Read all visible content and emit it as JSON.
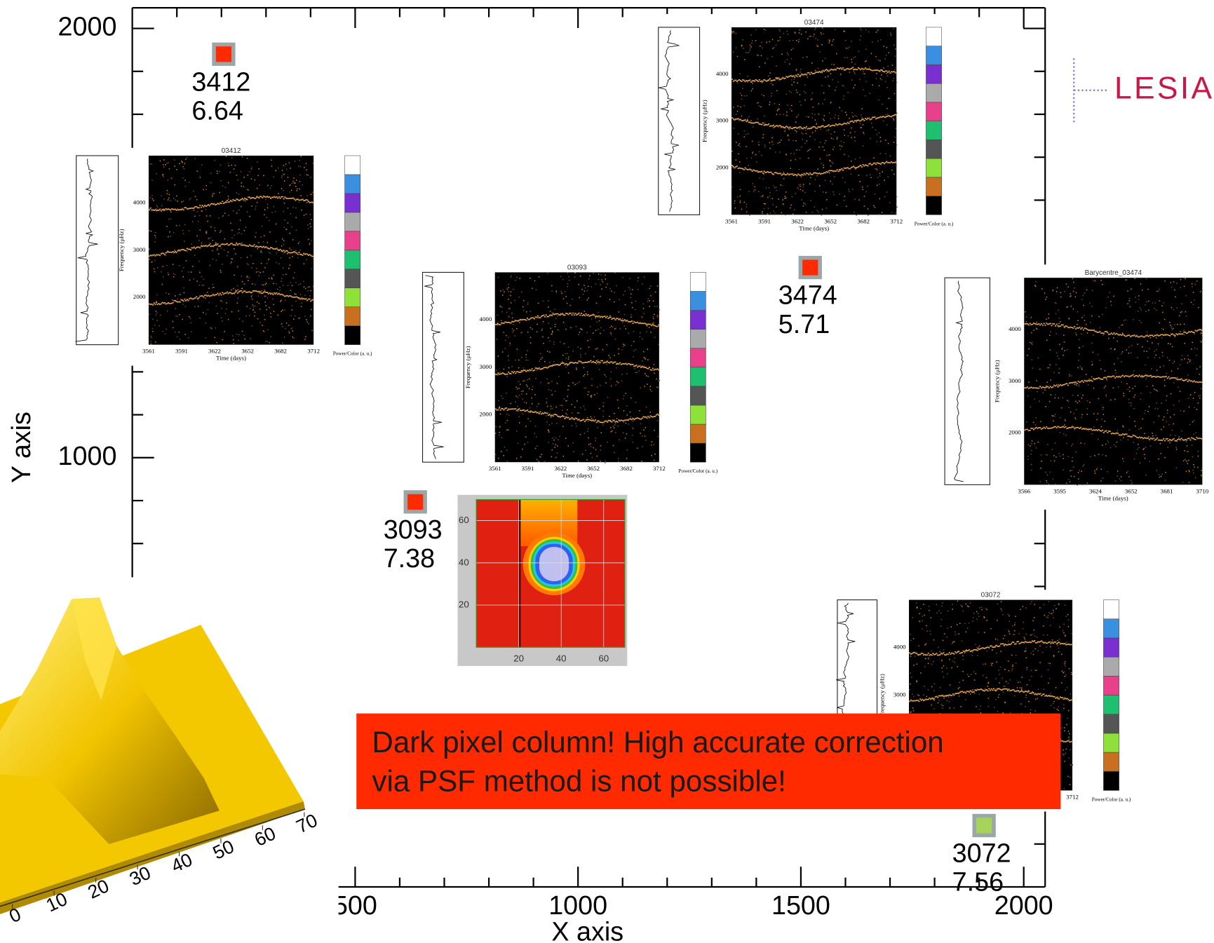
{
  "chart_data": {
    "type": "scatter",
    "x_label": "X axis",
    "y_label": "Y axis",
    "xlim": [
      0,
      2048
    ],
    "ylim": [
      0,
      2048
    ],
    "xticks": [
      500,
      1000,
      1500,
      2000
    ],
    "yticks": [
      1000,
      2000
    ],
    "x_minor_ticks": [
      100,
      200,
      300,
      400,
      600,
      700,
      800,
      900,
      1100,
      1200,
      1300,
      1400,
      1600,
      1700,
      1800,
      1900
    ],
    "y_minor_ticks": [
      100,
      200,
      300,
      400,
      600,
      700,
      800,
      900,
      1100,
      1200,
      1300,
      1400,
      1600,
      1700,
      1800,
      1900
    ],
    "points": [
      {
        "name": "3412",
        "x": 205,
        "y": 1940,
        "magnitude": 6.64,
        "color": "#ff2a00"
      },
      {
        "name": "3474",
        "x": 1521,
        "y": 1443,
        "magnitude": 5.71,
        "color": "#ff2a00"
      },
      {
        "name": "3093",
        "x": 635,
        "y": 897,
        "magnitude": 7.38,
        "color": "#ff2a00"
      },
      {
        "name": "3072",
        "x": 1911,
        "y": 143,
        "magnitude": 7.56,
        "color": "#a6d45a"
      }
    ]
  },
  "insets": [
    {
      "title": "03412",
      "xlabel": "Time (days)",
      "ylabel": "Frequency (μHz)",
      "xticks": [
        "3561",
        "3591",
        "3622",
        "3652",
        "3682",
        "3712"
      ],
      "yticks": [
        "4000",
        "3000",
        "2000"
      ],
      "colorbar_label": "Power/Color (a. u.)"
    },
    {
      "title": "03474",
      "xlabel": "Time (days)",
      "ylabel": "Frequency (μHz)",
      "xticks": [
        "3561",
        "3591",
        "3622",
        "3652",
        "3682",
        "3712"
      ],
      "yticks": [
        "4000",
        "3000",
        "2000"
      ],
      "colorbar_label": "Power/Color (a. u.)"
    },
    {
      "title": "03093",
      "xlabel": "Time (days)",
      "ylabel": "Frequency (μHz)",
      "xticks": [
        "3561",
        "3591",
        "3622",
        "3652",
        "3682",
        "3712"
      ],
      "yticks": [
        "4000",
        "3000",
        "2000"
      ],
      "colorbar_label": "Power/Color (a. u.)"
    },
    {
      "title": "Barycentre_03474",
      "xlabel": "Time (days)",
      "ylabel": "Frequency (μHz)",
      "xticks": [
        "3566",
        "3595",
        "3624",
        "3652",
        "3681",
        "3710"
      ],
      "yticks": [
        "4000",
        "3000",
        "2000"
      ]
    },
    {
      "title": "03072",
      "ylabel": "Frequency (μHz)",
      "xticks": [
        "3712"
      ],
      "yticks": [
        "4000",
        "3000"
      ],
      "colorbar_label": "Power/Color (a. u.)"
    }
  ],
  "psf_image": {
    "xlim": [
      0,
      70
    ],
    "ylim": [
      0,
      70
    ],
    "xticks": [
      20,
      40,
      60
    ],
    "yticks": [
      20,
      40,
      60
    ]
  },
  "surface_3d": {
    "xlim": [
      0,
      70
    ],
    "xticks": [
      0,
      10,
      20,
      30,
      40,
      50,
      60,
      70
    ]
  },
  "callout": {
    "lines": [
      "Dark pixel column! High accurate correction",
      "via PSF method is not possible!"
    ]
  },
  "logo": "LESIA"
}
